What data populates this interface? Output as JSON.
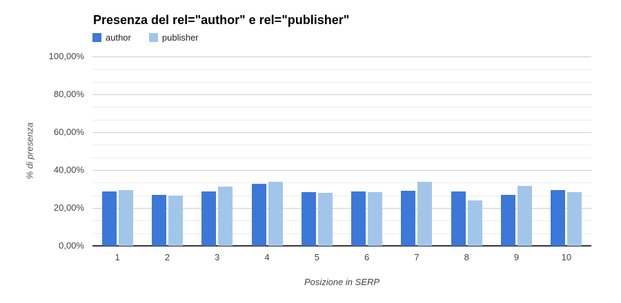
{
  "chart": {
    "title": "Presenza del rel=\"author\" e rel=\"publisher\""
  },
  "chart_data": {
    "type": "bar",
    "title": "Presenza del rel=\"author\" e rel=\"publisher\"",
    "xlabel": "Posizione in SERP",
    "ylabel": "% di presenza",
    "categories": [
      "1",
      "2",
      "3",
      "4",
      "5",
      "6",
      "7",
      "8",
      "9",
      "10"
    ],
    "series": [
      {
        "name": "author",
        "color": "#3C78D8",
        "values": [
          28.6,
          26.8,
          28.6,
          32.7,
          28.5,
          28.9,
          29.1,
          28.6,
          27.0,
          29.5
        ]
      },
      {
        "name": "publisher",
        "color": "#A2C6EA",
        "values": [
          29.6,
          26.5,
          31.3,
          33.8,
          27.9,
          28.4,
          33.7,
          24.1,
          31.5,
          28.5
        ]
      }
    ],
    "ylim": [
      0,
      100
    ],
    "yticks": [
      {
        "value": 0,
        "label": "0,00%"
      },
      {
        "value": 20,
        "label": "20,00%"
      },
      {
        "value": 40,
        "label": "40,00%"
      },
      {
        "value": 60,
        "label": "60,00%"
      },
      {
        "value": 80,
        "label": "80,00%"
      },
      {
        "value": 100,
        "label": "100,00%"
      }
    ],
    "minor_gridlines_between_majors": 2,
    "grid": true,
    "legend_position": "top-left"
  },
  "colors": {
    "background": "#FFFFFF",
    "title": "#000000",
    "major_gridline": "#CCCCCC",
    "minor_gridline": "#EBEBEB",
    "baseline": "#333333",
    "tick_label": "#444444",
    "axis_title": "#555555",
    "author_bar": "#3C78D8",
    "publisher_bar": "#A2C6EA"
  }
}
